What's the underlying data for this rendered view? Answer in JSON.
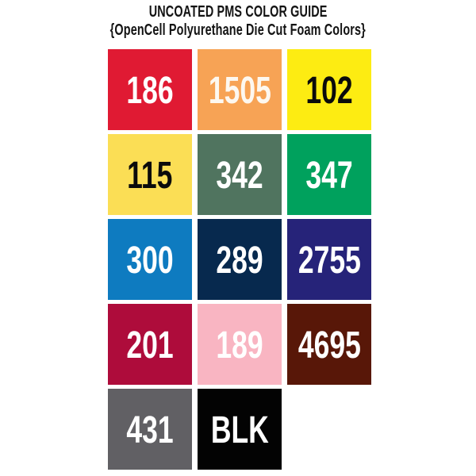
{
  "header": {
    "title": "UNCOATED PMS COLOR GUIDE",
    "subtitle": "{OpenCell Polyurethane Die Cut Foam Colors}"
  },
  "palette": {
    "description": "PMS uncoated foam color swatches",
    "swatches": [
      {
        "code": "186",
        "bg": "#E01A33",
        "fg": "#FFFFFF"
      },
      {
        "code": "1505",
        "bg": "#F7A355",
        "fg": "#FDF8F0"
      },
      {
        "code": "102",
        "bg": "#FDEC12",
        "fg": "#0B0B0B"
      },
      {
        "code": "115",
        "bg": "#FBDE55",
        "fg": "#0B0B0B"
      },
      {
        "code": "342",
        "bg": "#50745F",
        "fg": "#FFFFFF"
      },
      {
        "code": "347",
        "bg": "#00A15D",
        "fg": "#FFFFFF"
      },
      {
        "code": "300",
        "bg": "#0E7BC0",
        "fg": "#FFFFFF"
      },
      {
        "code": "289",
        "bg": "#07294E",
        "fg": "#FFFFFF"
      },
      {
        "code": "2755",
        "bg": "#262379",
        "fg": "#FFFFFF"
      },
      {
        "code": "201",
        "bg": "#AE0C3B",
        "fg": "#FFFFFF"
      },
      {
        "code": "189",
        "bg": "#F9B5C2",
        "fg": "#FFFFFF"
      },
      {
        "code": "4695",
        "bg": "#581708",
        "fg": "#FFFFFF"
      },
      {
        "code": "431",
        "bg": "#616064",
        "fg": "#FFFFFF"
      },
      {
        "code": "BLK",
        "bg": "#030303",
        "fg": "#FFFFFF"
      }
    ]
  }
}
